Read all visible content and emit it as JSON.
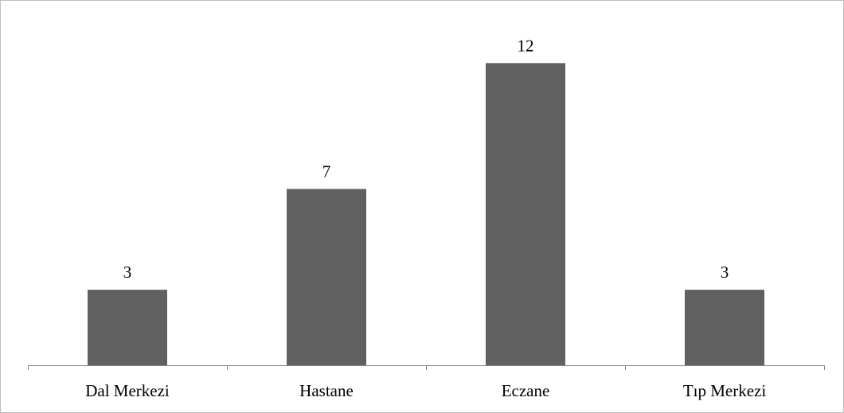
{
  "chart_data": {
    "type": "bar",
    "categories": [
      "Dal Merkezi",
      "Hastane",
      "Eczane",
      "Tıp Merkezi"
    ],
    "values": [
      3,
      7,
      12,
      3
    ],
    "title": "",
    "xlabel": "",
    "ylabel": "",
    "ylim": [
      0,
      14
    ],
    "grid": false,
    "legend": "none",
    "data_labels": true,
    "colors": {
      "bar": "#606060",
      "axis": "#868686",
      "border": "#bfbfbf",
      "text": "#000000"
    }
  }
}
